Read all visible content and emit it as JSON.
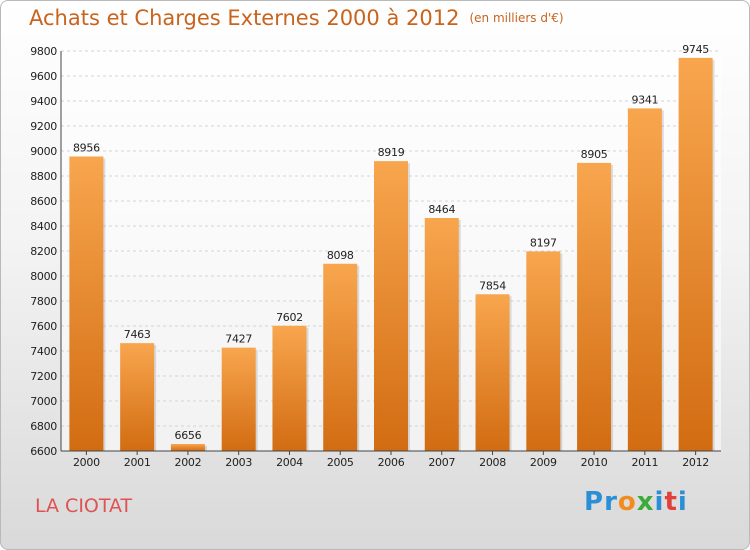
{
  "header": {
    "title": "Achats et Charges Externes 2000 à 2012",
    "subtitle": "(en milliers d'€)"
  },
  "footer": {
    "city": "LA CIOTAT",
    "logo_text": "Proxiti"
  },
  "colors": {
    "bar_light": "#f8a64e",
    "bar_dark": "#d26c12",
    "title": "#c8641e",
    "city": "#e05252",
    "logo": [
      "#2a8fd6",
      "#2a8fd6",
      "#f28c1e",
      "#3cab3a",
      "#2a8fd6",
      "#e0413a",
      "#2a8fd6"
    ]
  },
  "chart_data": {
    "type": "bar",
    "title": "Achats et Charges Externes 2000 à 2012",
    "categories": [
      "2000",
      "2001",
      "2002",
      "2003",
      "2004",
      "2005",
      "2006",
      "2007",
      "2008",
      "2009",
      "2010",
      "2011",
      "2012"
    ],
    "values": [
      8956,
      7463,
      6656,
      7427,
      7602,
      8098,
      8919,
      8464,
      7854,
      8197,
      8905,
      9341,
      9745
    ],
    "ylim": [
      6600,
      9800
    ],
    "yticks": [
      6600,
      6800,
      7000,
      7200,
      7400,
      7600,
      7800,
      8000,
      8200,
      8400,
      8600,
      8800,
      9000,
      9200,
      9400,
      9600,
      9800
    ],
    "grid": true,
    "data_labels": true
  }
}
